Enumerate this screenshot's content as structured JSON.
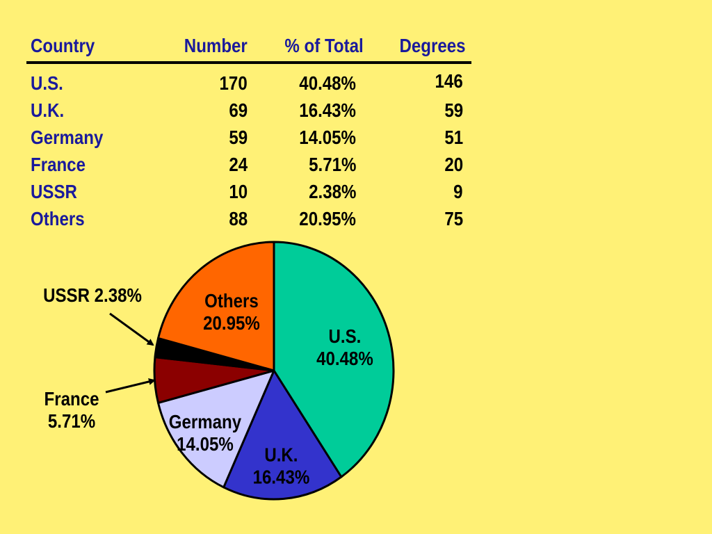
{
  "table": {
    "headers": [
      "Country",
      "Number",
      "% of Total",
      "Degrees"
    ],
    "rows": [
      {
        "country": "U.S.",
        "number": "170",
        "percent": "40.48%",
        "degrees": "146"
      },
      {
        "country": "U.K.",
        "number": "69",
        "percent": "16.43%",
        "degrees": "59"
      },
      {
        "country": "Germany",
        "number": "59",
        "percent": "14.05%",
        "degrees": "51"
      },
      {
        "country": "France",
        "number": "24",
        "percent": "5.71%",
        "degrees": "20"
      },
      {
        "country": "USSR",
        "number": "10",
        "percent": "2.38%",
        "degrees": "9"
      },
      {
        "country": "Others",
        "number": "88",
        "percent": "20.95%",
        "degrees": "75"
      }
    ]
  },
  "chart_data": {
    "type": "pie",
    "title": "",
    "start_angle": "12 o'clock",
    "direction": "clockwise",
    "slices": [
      {
        "label": "U.S.",
        "value": 40.48,
        "display": "40.48%",
        "color": "#00CC99"
      },
      {
        "label": "U.K.",
        "value": 16.43,
        "display": "16.43%",
        "color": "#3333CC"
      },
      {
        "label": "Germany",
        "value": 14.05,
        "display": "14.05%",
        "color": "#CCCCFF"
      },
      {
        "label": "France",
        "value": 5.71,
        "display": "5.71%",
        "color": "#8B0000"
      },
      {
        "label": "USSR",
        "value": 2.38,
        "display": "2.38%",
        "color": "#000000"
      },
      {
        "label": "Others",
        "value": 20.95,
        "display": "20.95%",
        "color": "#FF6600"
      }
    ]
  },
  "colors": {
    "background": "#FFF176",
    "header_text": "#1a1a9c",
    "outline": "#000000"
  }
}
